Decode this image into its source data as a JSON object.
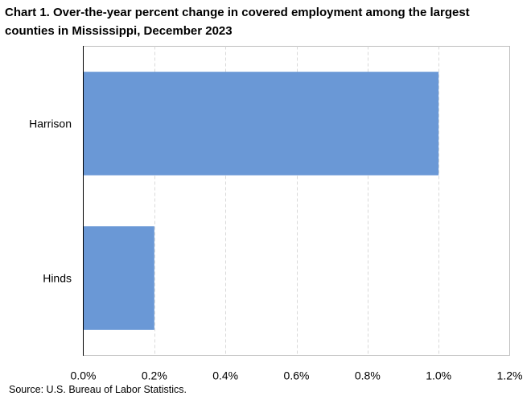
{
  "chart_data": {
    "type": "bar",
    "orientation": "horizontal",
    "title_lines": [
      "Chart 1. Over-the-year percent change in covered employment among the largest",
      "counties in Mississippi,  December 2023"
    ],
    "categories": [
      "Harrison",
      "Hinds"
    ],
    "values": [
      1.0,
      0.2
    ],
    "xlim": [
      0,
      1.2
    ],
    "xticks": [
      "0.0%",
      "0.2%",
      "0.4%",
      "0.6%",
      "0.8%",
      "1.0%",
      "1.2%"
    ],
    "xlabel": "",
    "ylabel": "",
    "grid": "vertical dashed",
    "legend": "none",
    "bar_color": "#6a98d6",
    "source": "Source: U.S. Bureau of Labor Statistics."
  }
}
